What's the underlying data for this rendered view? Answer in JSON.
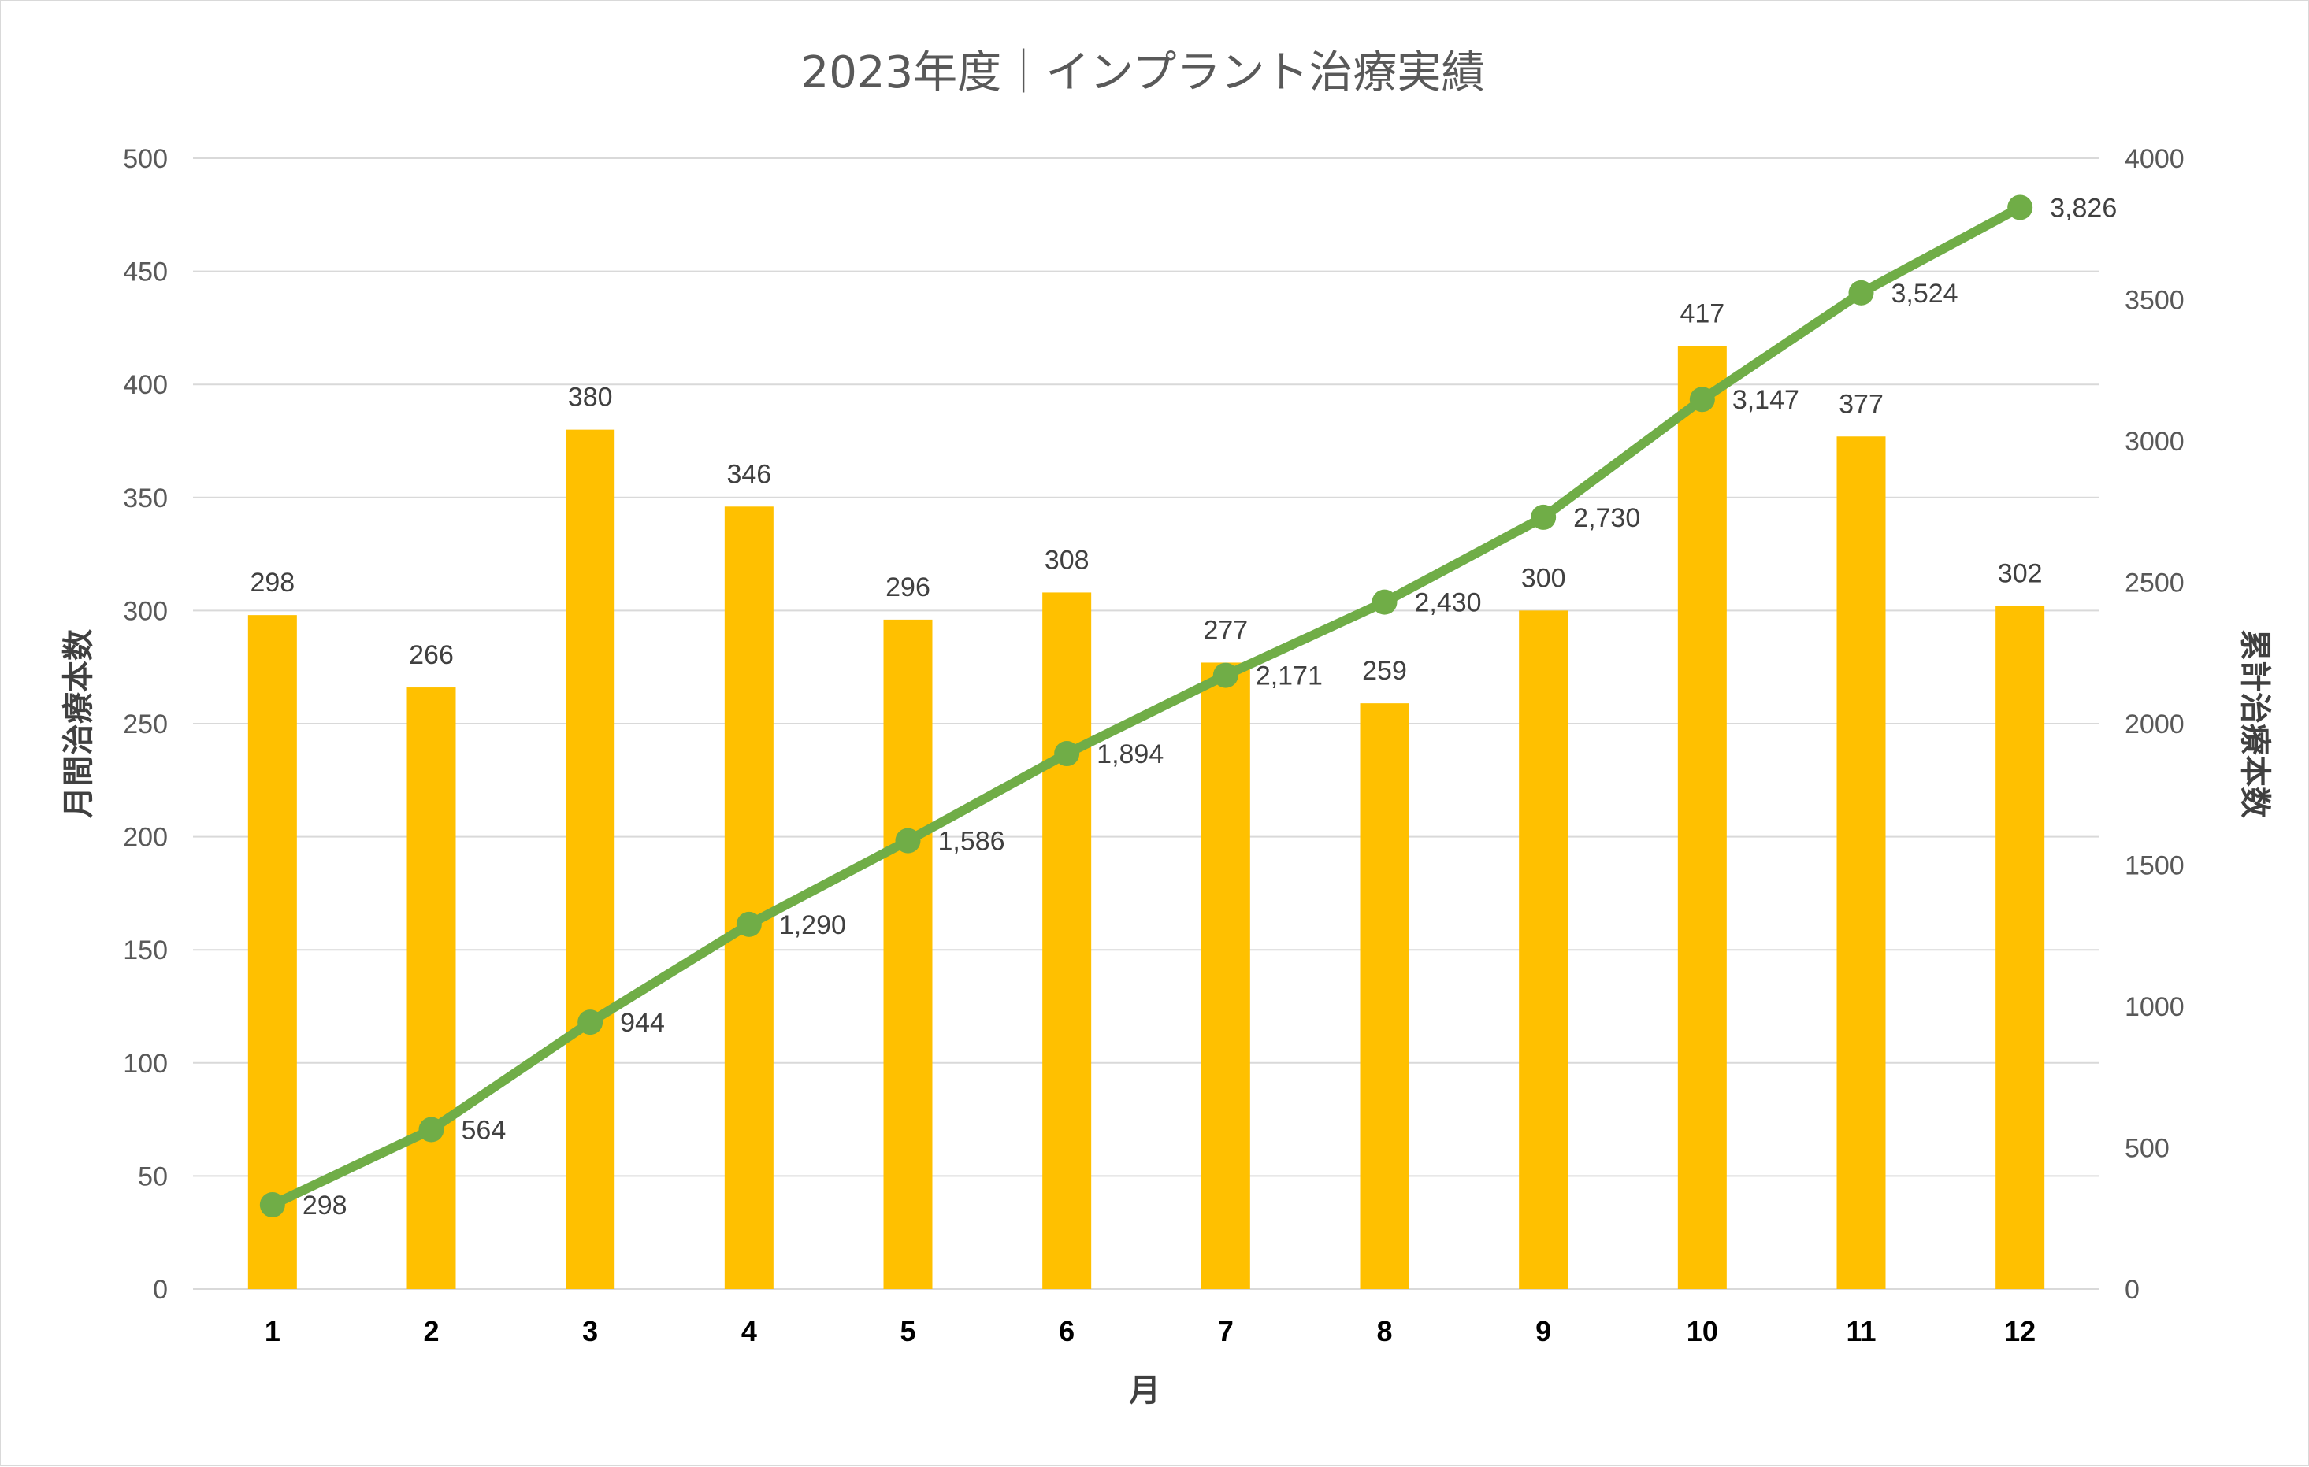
{
  "chart_data": {
    "type": "bar",
    "title": "2023年度｜インプラント治療実績",
    "xlabel": "月",
    "ylabel": "月間治療本数",
    "y2label": "累計治療本数",
    "categories": [
      "1",
      "2",
      "3",
      "4",
      "5",
      "6",
      "7",
      "8",
      "9",
      "10",
      "11",
      "12"
    ],
    "series": [
      {
        "type": "bar",
        "axis": "left",
        "color": "#FFC000",
        "values": [
          298,
          266,
          380,
          346,
          296,
          308,
          277,
          259,
          300,
          417,
          377,
          302
        ],
        "labels": [
          "298",
          "266",
          "380",
          "346",
          "296",
          "308",
          "277",
          "259",
          "300",
          "417",
          "377",
          "302"
        ]
      },
      {
        "type": "line",
        "axis": "right",
        "color": "#70AD47",
        "values": [
          298,
          564,
          944,
          1290,
          1586,
          1894,
          2171,
          2430,
          2730,
          3147,
          3524,
          3826
        ],
        "labels": [
          "298",
          "564",
          "944",
          "1,290",
          "1,586",
          "1,894",
          "2,171",
          "2,430",
          "2,730",
          "3,147",
          "3,524",
          "3,826"
        ]
      }
    ],
    "ylim": [
      0,
      500
    ],
    "yticks": [
      "0",
      "50",
      "100",
      "150",
      "200",
      "250",
      "300",
      "350",
      "400",
      "450",
      "500"
    ],
    "y2lim": [
      0,
      4000
    ],
    "y2ticks": [
      "0",
      "500",
      "1000",
      "1500",
      "2000",
      "2500",
      "3000",
      "3500",
      "4000"
    ],
    "grid": true,
    "legend": "none"
  }
}
